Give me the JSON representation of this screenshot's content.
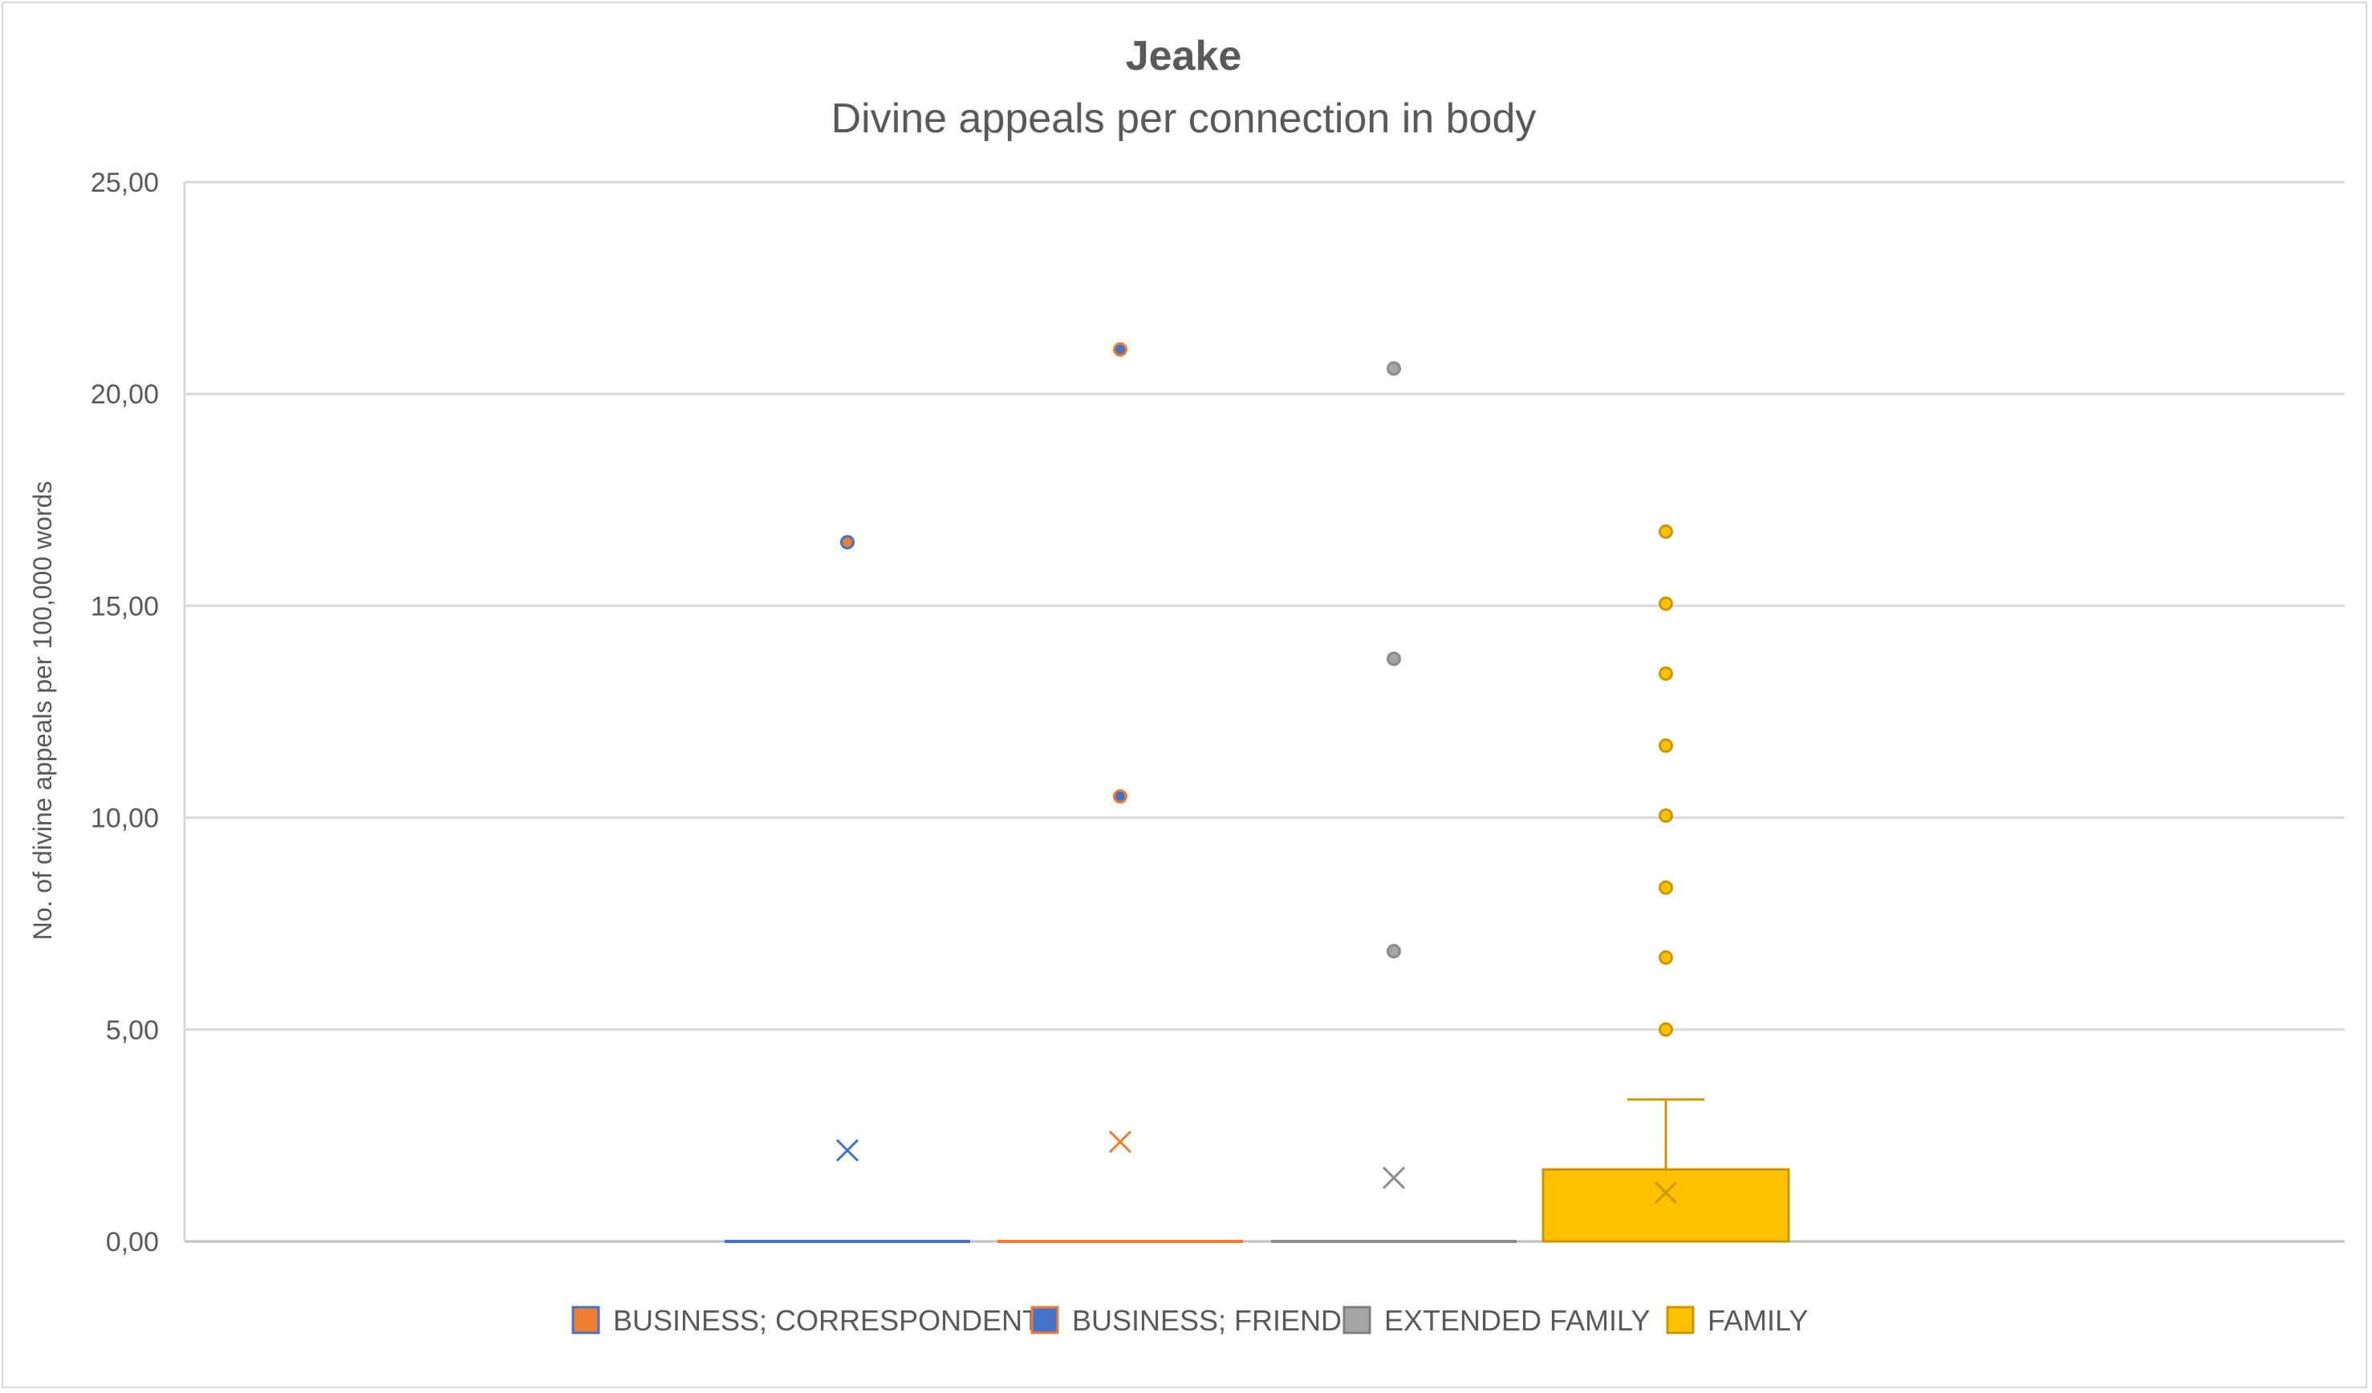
{
  "chart_data": {
    "type": "box",
    "title": "Jeake",
    "subtitle": "Divine appeals per connection in body",
    "ylabel": "No. of divine appeals per 100,000 words",
    "xlabel": "",
    "ylim": [
      0,
      25
    ],
    "yticks": [
      "0,00",
      "5,00",
      "10,00",
      "15,00",
      "20,00",
      "25,00"
    ],
    "ytick_values": [
      0,
      5,
      10,
      15,
      20,
      25
    ],
    "grid": true,
    "legend_position": "bottom",
    "series": [
      {
        "name": "BUSINESS; CORRESPONDENT",
        "legend_fill": "#ED7D31",
        "legend_border": "#4472C4",
        "color": "#4472C4",
        "q1": 0,
        "median": 0,
        "q3": 0,
        "whisker_low": 0,
        "whisker_high": 0,
        "mean": 2.15,
        "outliers": [
          16.5
        ]
      },
      {
        "name": "BUSINESS; FRIEND",
        "legend_fill": "#4472C4",
        "legend_border": "#ED7D31",
        "color": "#ED7D31",
        "q1": 0,
        "median": 0,
        "q3": 0,
        "whisker_low": 0,
        "whisker_high": 0,
        "mean": 2.35,
        "outliers": [
          10.5,
          21.05
        ]
      },
      {
        "name": "EXTENDED FAMILY",
        "legend_fill": "#A5A5A5",
        "legend_border": "#7F7F7F",
        "color": "#8C8C8C",
        "q1": 0,
        "median": 0,
        "q3": 0,
        "whisker_low": 0,
        "whisker_high": 0,
        "mean": 1.5,
        "outliers": [
          6.85,
          13.75,
          20.6
        ]
      },
      {
        "name": "FAMILY",
        "legend_fill": "#FFC000",
        "legend_border": "#C99700",
        "color": "#FFC000",
        "q1": 0,
        "median": 0,
        "q3": 1.7,
        "whisker_low": 0,
        "whisker_high": 3.35,
        "mean": 1.15,
        "outliers": [
          5.0,
          6.7,
          8.35,
          10.05,
          11.7,
          13.4,
          15.05,
          16.75
        ]
      }
    ]
  }
}
